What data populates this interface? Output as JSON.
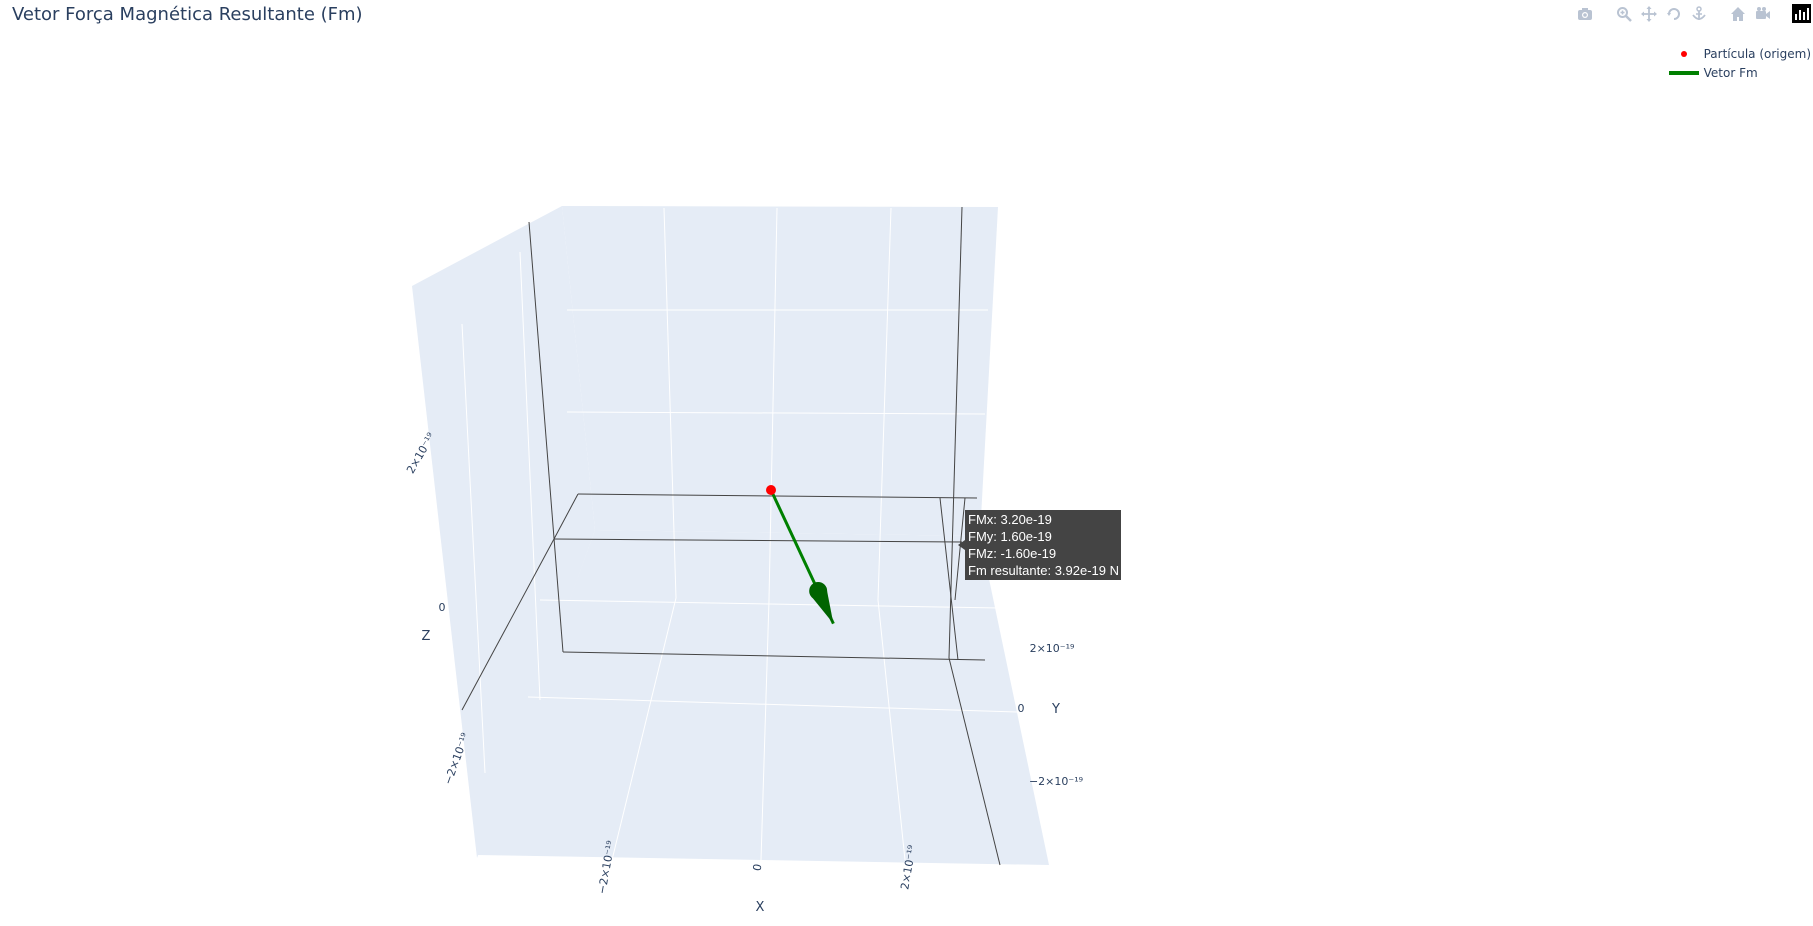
{
  "title": "Vetor Força Magnética Resultante (Fm)",
  "modebar": {
    "icons": [
      "camera-icon",
      "zoom-icon",
      "pan-icon",
      "orbit-rotation-icon",
      "turntable-rotation-icon",
      "reset-camera-home-icon",
      "reset-camera-last-save-icon",
      "plotly-logo-icon"
    ]
  },
  "legend": {
    "placement": "top-right",
    "items": [
      {
        "label": "Partícula (origem)",
        "color": "#ff0000",
        "symbol": "marker"
      },
      {
        "label": "Vetor Fm",
        "color": "#008000",
        "symbol": "line"
      }
    ]
  },
  "chart_data": {
    "type": "scatter3d",
    "title": "Vetor Força Magnética Resultante (Fm)",
    "axes": {
      "x": {
        "label": "X",
        "range": [
          -4e-19,
          4e-19
        ],
        "ticks": [
          -2e-19,
          0,
          2e-19
        ],
        "tick_labels": [
          "−2×10⁻¹⁹",
          "0",
          "2×10⁻¹⁹"
        ]
      },
      "y": {
        "label": "Y",
        "range": [
          -4e-19,
          4e-19
        ],
        "ticks": [
          -2e-19,
          0,
          2e-19
        ],
        "tick_labels": [
          "−2×10⁻¹⁹",
          "0",
          "2×10⁻¹⁹"
        ]
      },
      "z": {
        "label": "Z",
        "range": [
          -4e-19,
          4e-19
        ],
        "ticks": [
          -2e-19,
          0,
          2e-19
        ],
        "tick_labels": [
          "−2×10⁻¹⁹",
          "0",
          "2×10⁻¹⁹"
        ]
      }
    },
    "grid": true,
    "background": "#e5ecf6",
    "series": [
      {
        "name": "Partícula (origem)",
        "mode": "markers",
        "color": "#ff0000",
        "points": [
          [
            0,
            0,
            0
          ]
        ]
      },
      {
        "name": "Vetor Fm",
        "mode": "lines+cone",
        "color": "#008000",
        "points": [
          [
            0,
            0,
            0
          ],
          [
            3.2e-19,
            1.6e-19,
            -1.6e-19
          ]
        ]
      }
    ],
    "hover": {
      "lines": [
        "FMx: 3.20e-19",
        "FMy: 1.60e-19",
        "FMz: -1.60e-19",
        "Fm resultante: 3.92e-19 N"
      ]
    }
  }
}
